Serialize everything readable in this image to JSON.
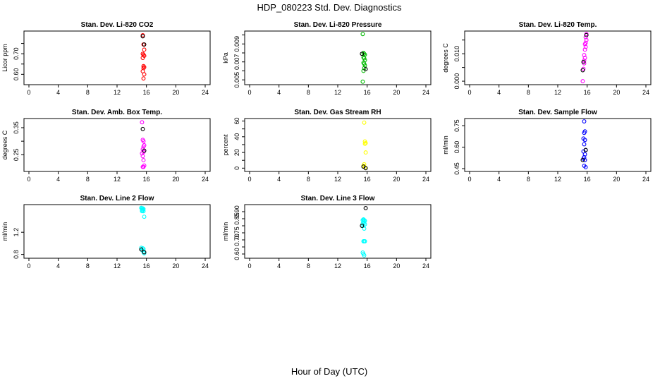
{
  "figure_title": "HDP_080223 Std. Dev. Diagnostics",
  "x_axis_label": "Hour of Day (UTC)",
  "chart_data": [
    {
      "type": "scatter",
      "title": "Stan. Dev. Li-820 CO2",
      "ylabel": "Licor ppm",
      "xlim": [
        0,
        24
      ],
      "x_ticks": [
        0,
        4,
        8,
        12,
        16,
        20,
        24
      ],
      "ylim": [
        0.56,
        0.8
      ],
      "y_ticks": [
        0.6,
        0.65,
        0.7,
        0.75
      ],
      "y_tick_labels": [
        "0.60",
        "",
        "0.70",
        ""
      ],
      "series": [
        {
          "name": "color",
          "color": "#ff0000",
          "x": [
            15.5,
            15.6,
            15.7,
            15.5,
            15.6,
            15.7,
            15.5,
            15.6,
            15.7,
            15.6,
            15.5,
            15.7,
            15.6
          ],
          "y": [
            0.79,
            0.745,
            0.72,
            0.7,
            0.695,
            0.69,
            0.68,
            0.64,
            0.635,
            0.63,
            0.615,
            0.6,
            0.58
          ]
        },
        {
          "name": "black",
          "color": "#000000",
          "x": [
            15.5,
            15.7
          ],
          "y": [
            0.785,
            0.745
          ]
        }
      ]
    },
    {
      "type": "scatter",
      "title": "Stan. Dev. Li-820 Pressure",
      "ylabel": "kPa",
      "xlim": [
        0,
        24
      ],
      "x_ticks": [
        0,
        4,
        8,
        12,
        16,
        20,
        24
      ],
      "ylim": [
        0.0047,
        0.0102
      ],
      "y_ticks": [
        0.005,
        0.006,
        0.007,
        0.008,
        0.009,
        0.01
      ],
      "y_tick_labels": [
        "0.005",
        "",
        "0.007",
        "",
        "0.009",
        ""
      ],
      "series": [
        {
          "name": "color",
          "color": "#00bb00",
          "x": [
            15.4,
            15.5,
            15.6,
            15.7,
            15.5,
            15.6,
            15.7,
            15.5,
            15.6,
            15.7,
            15.6,
            15.5,
            15.4
          ],
          "y": [
            0.0101,
            0.008,
            0.0079,
            0.0078,
            0.0075,
            0.0074,
            0.0072,
            0.0069,
            0.0068,
            0.0066,
            0.0063,
            0.006,
            0.0048
          ]
        },
        {
          "name": "black",
          "color": "#000000",
          "x": [
            15.3,
            15.8
          ],
          "y": [
            0.0079,
            0.0062
          ]
        }
      ]
    },
    {
      "type": "scatter",
      "title": "Stan. Dev. Li-820 Temp.",
      "ylabel": "degrees C",
      "xlim": [
        0,
        24
      ],
      "x_ticks": [
        0,
        4,
        8,
        12,
        16,
        20,
        24
      ],
      "ylim": [
        -0.0005,
        0.0175
      ],
      "y_ticks": [
        0.0,
        0.005,
        0.01,
        0.015
      ],
      "y_tick_labels": [
        "0.000",
        "",
        "0.010",
        ""
      ],
      "series": [
        {
          "name": "color",
          "color": "#ff00ff",
          "x": [
            15.9,
            15.8,
            15.9,
            15.8,
            15.7,
            15.8,
            15.7,
            15.6,
            15.7,
            15.6,
            15.6,
            15.5,
            15.4
          ],
          "y": [
            0.0172,
            0.016,
            0.015,
            0.014,
            0.0135,
            0.0125,
            0.0115,
            0.0095,
            0.0085,
            0.0075,
            0.0065,
            0.0045,
            0.0
          ]
        },
        {
          "name": "black",
          "color": "#000000",
          "x": [
            15.9,
            15.5,
            15.4
          ],
          "y": [
            0.0168,
            0.007,
            0.004
          ]
        }
      ]
    },
    {
      "type": "scatter",
      "title": "Stan. Dev. Amb. Box Temp.",
      "ylabel": "degrees C",
      "xlim": [
        0,
        24
      ],
      "x_ticks": [
        0,
        4,
        8,
        12,
        16,
        20,
        24
      ],
      "ylim": [
        0.196,
        0.376
      ],
      "y_ticks": [
        0.25,
        0.3,
        0.35
      ],
      "y_tick_labels": [
        "0.25",
        "",
        "0.35"
      ],
      "series": [
        {
          "name": "color",
          "color": "#ff00ff",
          "x": [
            15.4,
            15.5,
            15.6,
            15.7,
            15.6,
            15.5,
            15.7,
            15.6,
            15.4,
            15.5,
            15.6,
            15.7,
            15.5,
            15.6
          ],
          "y": [
            0.37,
            0.305,
            0.3,
            0.285,
            0.28,
            0.27,
            0.265,
            0.26,
            0.255,
            0.245,
            0.23,
            0.21,
            0.205,
            0.205
          ]
        },
        {
          "name": "black",
          "color": "#000000",
          "x": [
            15.5,
            15.7
          ],
          "y": [
            0.345,
            0.265
          ]
        }
      ]
    },
    {
      "type": "scatter",
      "title": "Stan. Dev. Gas Stream RH",
      "ylabel": "percent",
      "xlim": [
        0,
        24
      ],
      "x_ticks": [
        0,
        4,
        8,
        12,
        16,
        20,
        24
      ],
      "ylim": [
        -1.5,
        60.5
      ],
      "y_ticks": [
        0,
        10,
        20,
        30,
        40,
        50,
        60
      ],
      "y_tick_labels": [
        "0",
        "",
        "20",
        "",
        "40",
        "",
        "60"
      ],
      "series": [
        {
          "name": "color",
          "color": "#ffff00",
          "x": [
            15.6,
            15.7,
            15.8,
            15.7,
            15.8,
            15.6,
            15.5,
            15.7
          ],
          "y": [
            58,
            34,
            32,
            31,
            20,
            5,
            3,
            1
          ]
        },
        {
          "name": "black",
          "color": "#000000",
          "x": [
            15.5,
            15.8
          ],
          "y": [
            2,
            0
          ]
        }
      ]
    },
    {
      "type": "scatter",
      "title": "Stan. Dev. Sample Flow",
      "ylabel": "ml/min",
      "xlim": [
        0,
        24
      ],
      "x_ticks": [
        0,
        4,
        8,
        12,
        16,
        20,
        24
      ],
      "ylim": [
        0.445,
        0.785
      ],
      "y_ticks": [
        0.45,
        0.6,
        0.75
      ],
      "y_tick_labels": [
        "0.45",
        "0.60",
        "0.75"
      ],
      "series": [
        {
          "name": "color",
          "color": "#0000ff",
          "x": [
            15.6,
            15.7,
            15.6,
            15.5,
            15.7,
            15.6,
            15.8,
            15.5,
            15.7,
            15.6,
            15.5,
            15.7,
            15.6,
            15.8
          ],
          "y": [
            0.78,
            0.71,
            0.7,
            0.66,
            0.65,
            0.62,
            0.58,
            0.57,
            0.55,
            0.53,
            0.52,
            0.51,
            0.47,
            0.46
          ]
        },
        {
          "name": "black",
          "color": "#000000",
          "x": [
            15.8,
            15.4
          ],
          "y": [
            0.58,
            0.51
          ]
        }
      ]
    },
    {
      "type": "scatter",
      "title": "Stan. Dev. Line 2 Flow",
      "ylabel": "ml/min",
      "xlim": [
        0,
        24
      ],
      "x_ticks": [
        0,
        4,
        8,
        12,
        16,
        20,
        24
      ],
      "ylim": [
        0.77,
        1.66
      ],
      "y_ticks": [
        0.8,
        1.2
      ],
      "y_tick_labels": [
        "0.8",
        "1.2"
      ],
      "series": [
        {
          "name": "color",
          "color": "#00ffff",
          "x": [
            15.3,
            15.4,
            15.5,
            15.6,
            15.4,
            15.5,
            15.6,
            15.4,
            15.7,
            15.3,
            15.5,
            15.6,
            15.4,
            15.6,
            15.7
          ],
          "y": [
            1.64,
            1.63,
            1.63,
            1.62,
            1.6,
            1.6,
            1.58,
            1.58,
            1.48,
            0.92,
            0.91,
            0.9,
            0.88,
            0.84,
            0.82
          ]
        },
        {
          "name": "black",
          "color": "#000000",
          "x": [
            15.3,
            15.7
          ],
          "y": [
            0.89,
            0.84
          ]
        }
      ]
    },
    {
      "type": "scatter",
      "title": "Stan. Dev. Line 3 Flow",
      "ylabel": "ml/min",
      "xlim": [
        0,
        24
      ],
      "x_ticks": [
        0,
        4,
        8,
        12,
        16,
        20,
        24
      ],
      "ylim": [
        0.585,
        0.935
      ],
      "y_ticks": [
        0.6,
        0.65,
        0.7,
        0.75,
        0.8,
        0.85,
        0.9
      ],
      "y_tick_labels": [
        "0.60",
        "",
        "0.70",
        "0.75",
        "",
        "0.85",
        "0.90"
      ],
      "series": [
        {
          "name": "color",
          "color": "#00ffff",
          "x": [
            15.4,
            15.5,
            15.6,
            15.7,
            15.5,
            15.6,
            15.4,
            15.7,
            15.5,
            15.6,
            15.5,
            15.6,
            15.7,
            15.4,
            15.5,
            15.6
          ],
          "y": [
            0.84,
            0.845,
            0.84,
            0.835,
            0.83,
            0.82,
            0.815,
            0.81,
            0.8,
            0.78,
            0.69,
            0.69,
            0.69,
            0.61,
            0.6,
            0.59
          ]
        },
        {
          "name": "black",
          "color": "#000000",
          "x": [
            15.8,
            15.3
          ],
          "y": [
            0.925,
            0.8
          ]
        }
      ]
    }
  ]
}
